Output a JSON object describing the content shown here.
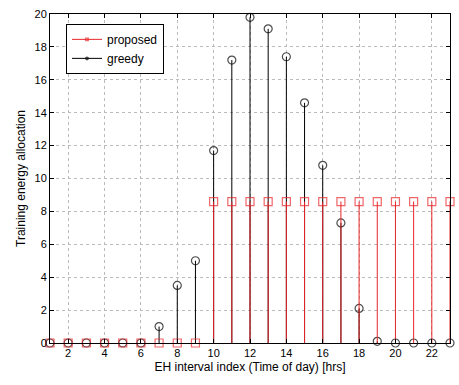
{
  "chart_data": {
    "type": "stem",
    "x_label": "EH interval index (Time of day) [hrs]",
    "y_label": "Training energy allocation",
    "x": [
      1,
      2,
      3,
      4,
      5,
      6,
      7,
      8,
      9,
      10,
      11,
      12,
      13,
      14,
      15,
      16,
      17,
      18,
      19,
      20,
      21,
      22,
      23
    ],
    "series": [
      {
        "name": "proposed",
        "color": "#e8262a",
        "marker": "square-open",
        "values": [
          0,
          0,
          0,
          0,
          0,
          0,
          0,
          0,
          0,
          8.6,
          8.6,
          8.6,
          8.6,
          8.6,
          8.6,
          8.6,
          8.6,
          8.6,
          8.6,
          8.6,
          8.6,
          8.6,
          8.6
        ]
      },
      {
        "name": "greedy",
        "color": "#000000",
        "marker": "circle-open",
        "values": [
          0,
          0,
          0,
          0,
          0,
          0,
          1.0,
          3.5,
          5.0,
          11.7,
          17.2,
          19.8,
          19.1,
          17.4,
          14.6,
          10.8,
          7.3,
          2.1,
          0.1,
          0,
          0,
          0,
          0
        ]
      }
    ],
    "xlim": [
      1,
      23
    ],
    "xticks": [
      2,
      4,
      6,
      8,
      10,
      12,
      14,
      16,
      18,
      20,
      22
    ],
    "ylim": [
      0,
      20
    ],
    "yticks": [
      0,
      2,
      4,
      6,
      8,
      10,
      12,
      14,
      16,
      18,
      20
    ],
    "grid": true,
    "legend": "upper left"
  }
}
